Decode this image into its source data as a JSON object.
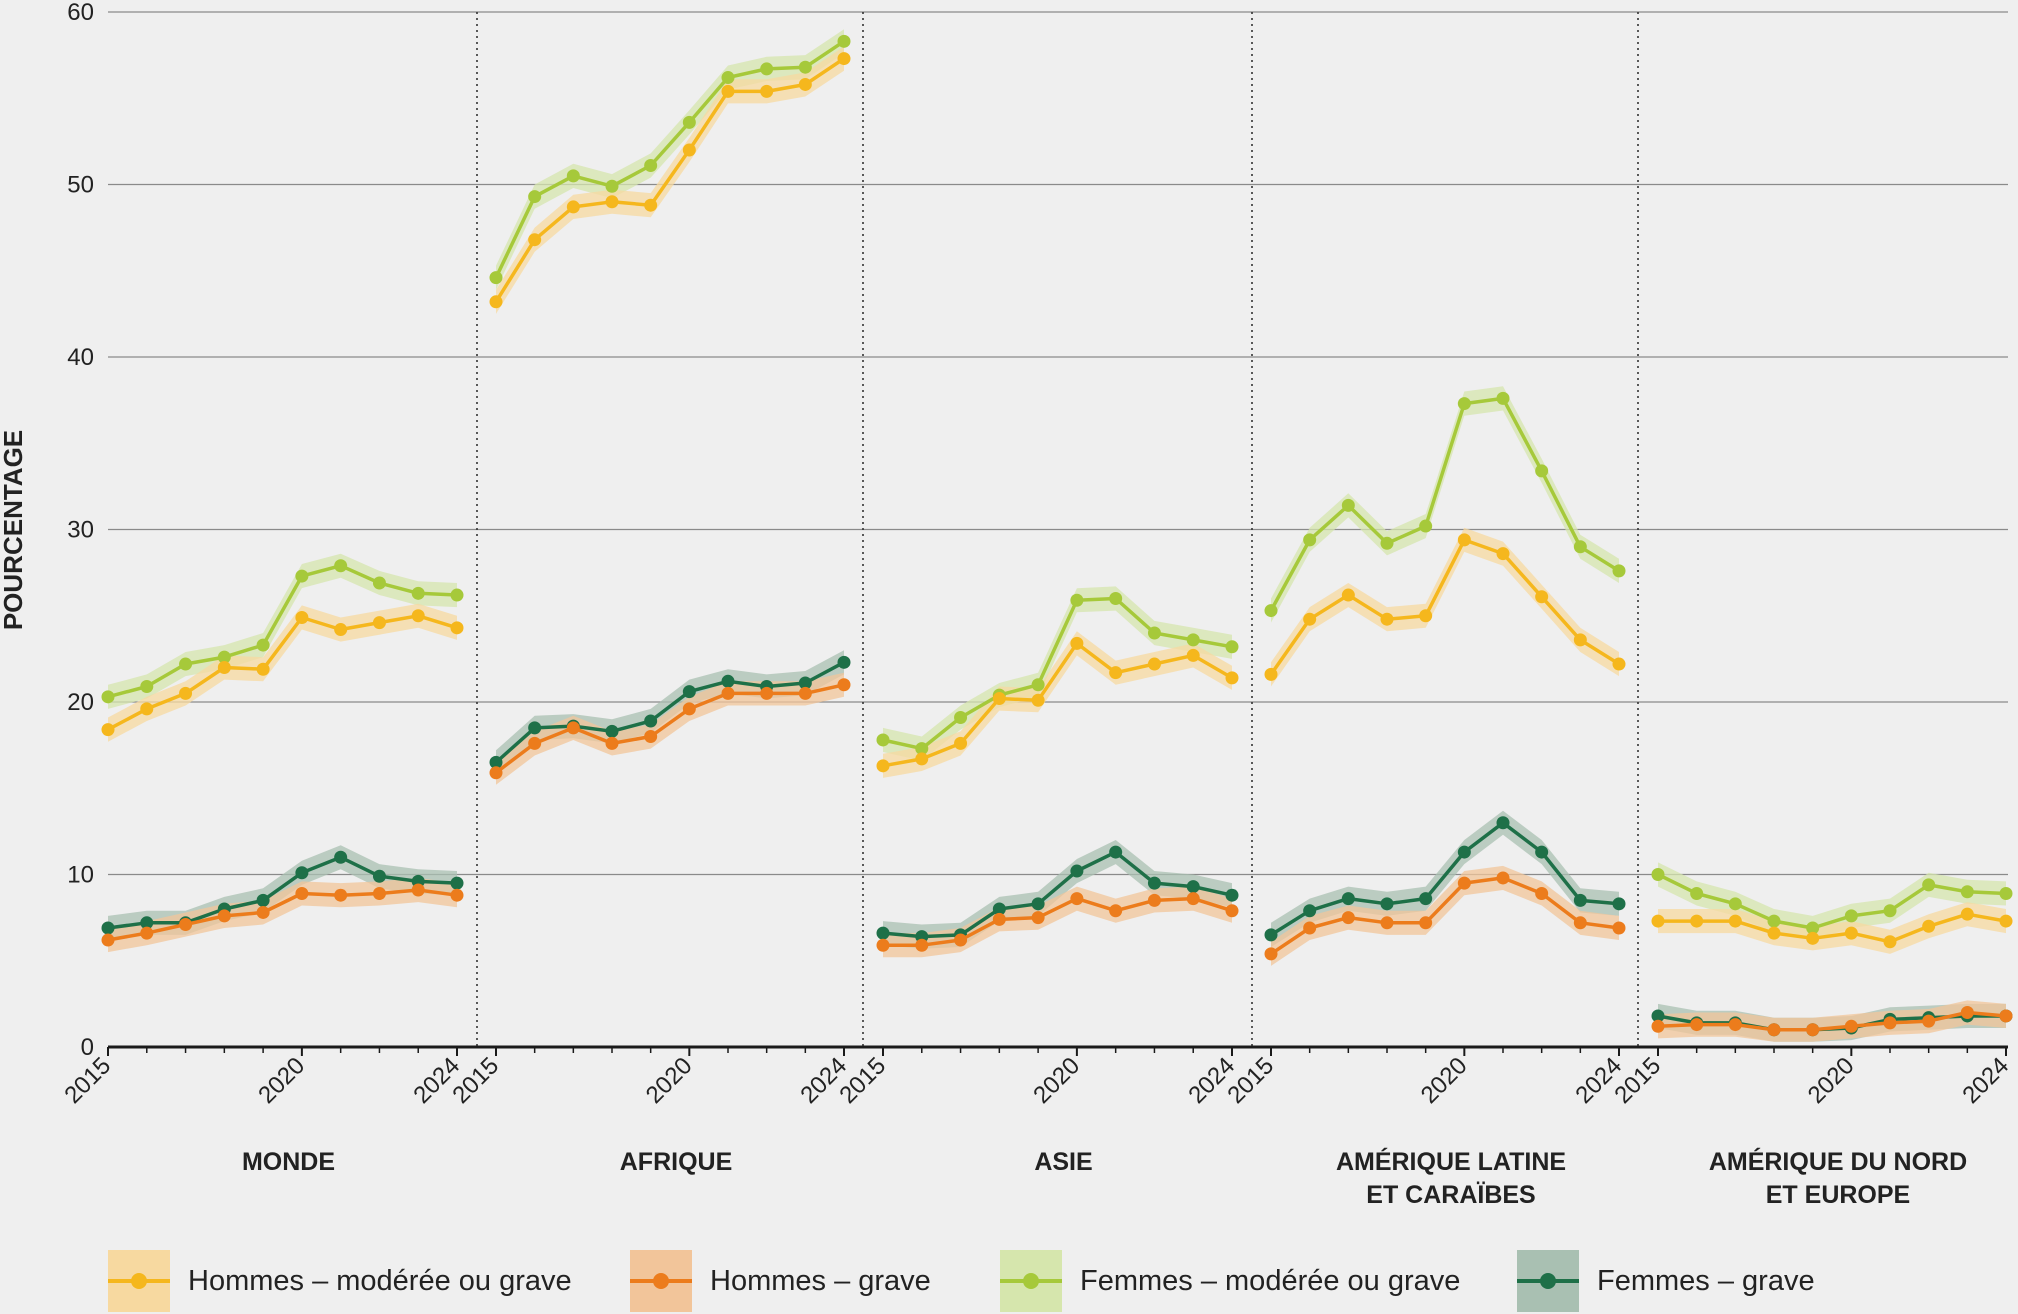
{
  "chart_data": {
    "type": "line",
    "ylabel": "POURCENTAGE",
    "ylim": [
      0,
      60
    ],
    "yticks": [
      "0",
      "10",
      "20",
      "30",
      "40",
      "50",
      "60"
    ],
    "x_tick_labels": [
      "2015",
      "2020",
      "2024"
    ],
    "years": [
      2015,
      2016,
      2017,
      2018,
      2019,
      2020,
      2021,
      2022,
      2023,
      2024
    ],
    "legend_position": "bottom",
    "series_styles": [
      {
        "key": "hommes_mod",
        "name": "Hommes – modérée ou grave",
        "color": "#f5b71d",
        "band": "#f7d9a0"
      },
      {
        "key": "hommes_grave",
        "name": "Hommes – grave",
        "color": "#ec7c1c",
        "band": "#f2c59a"
      },
      {
        "key": "femmes_mod",
        "name": "Femmes – modérée ou grave",
        "color": "#a6c93a",
        "band": "#d6e6ad"
      },
      {
        "key": "femmes_grave",
        "name": "Femmes – grave",
        "color": "#1e7048",
        "band": "#a9c0b2"
      }
    ],
    "panels": [
      {
        "title": [
          "MONDE"
        ],
        "series": {
          "hommes_mod": [
            18.4,
            19.6,
            20.5,
            22.0,
            21.9,
            24.9,
            24.2,
            24.6,
            25.0,
            24.3
          ],
          "hommes_grave": [
            6.2,
            6.6,
            7.1,
            7.6,
            7.8,
            8.9,
            8.8,
            8.9,
            9.1,
            8.8
          ],
          "femmes_mod": [
            20.3,
            20.9,
            22.2,
            22.6,
            23.3,
            27.3,
            27.9,
            26.9,
            26.3,
            26.2
          ],
          "femmes_grave": [
            6.9,
            7.2,
            7.2,
            8.0,
            8.5,
            10.1,
            11.0,
            9.9,
            9.6,
            9.5
          ]
        }
      },
      {
        "title": [
          "AFRIQUE"
        ],
        "series": {
          "hommes_mod": [
            43.2,
            46.8,
            48.7,
            49.0,
            48.8,
            52.0,
            55.4,
            55.4,
            55.8,
            57.3
          ],
          "hommes_grave": [
            15.9,
            17.6,
            18.5,
            17.6,
            18.0,
            19.6,
            20.5,
            20.5,
            20.5,
            21.0
          ],
          "femmes_mod": [
            44.6,
            49.3,
            50.5,
            49.9,
            51.1,
            53.6,
            56.2,
            56.7,
            56.8,
            58.3
          ],
          "femmes_grave": [
            16.5,
            18.5,
            18.6,
            18.3,
            18.9,
            20.6,
            21.2,
            20.9,
            21.1,
            22.3
          ]
        }
      },
      {
        "title": [
          "ASIE"
        ],
        "series": {
          "hommes_mod": [
            16.3,
            16.7,
            17.6,
            20.2,
            20.1,
            23.4,
            21.7,
            22.2,
            22.7,
            21.4
          ],
          "hommes_grave": [
            5.9,
            5.9,
            6.2,
            7.4,
            7.5,
            8.6,
            7.9,
            8.5,
            8.6,
            7.9
          ],
          "femmes_mod": [
            17.8,
            17.3,
            19.1,
            20.4,
            21.0,
            25.9,
            26.0,
            24.0,
            23.6,
            23.2
          ],
          "femmes_grave": [
            6.6,
            6.4,
            6.5,
            8.0,
            8.3,
            10.2,
            11.3,
            9.5,
            9.3,
            8.8
          ]
        }
      },
      {
        "title": [
          "AMÉRIQUE LATINE",
          "ET CARAÏBES"
        ],
        "series": {
          "hommes_mod": [
            21.6,
            24.8,
            26.2,
            24.8,
            25.0,
            29.4,
            28.6,
            26.1,
            23.6,
            22.2
          ],
          "hommes_grave": [
            5.4,
            6.9,
            7.5,
            7.2,
            7.2,
            9.5,
            9.8,
            8.9,
            7.2,
            6.9
          ],
          "femmes_mod": [
            25.3,
            29.4,
            31.4,
            29.2,
            30.2,
            37.3,
            37.6,
            33.4,
            29.0,
            27.6
          ],
          "femmes_grave": [
            6.5,
            7.9,
            8.6,
            8.3,
            8.6,
            11.3,
            13.0,
            11.3,
            8.5,
            8.3
          ]
        }
      },
      {
        "title": [
          "AMÉRIQUE DU NORD",
          "ET EUROPE"
        ],
        "series": {
          "hommes_mod": [
            7.3,
            7.3,
            7.3,
            6.6,
            6.3,
            6.6,
            6.1,
            7.0,
            7.7,
            7.3
          ],
          "hommes_grave": [
            1.2,
            1.3,
            1.3,
            1.0,
            1.0,
            1.2,
            1.4,
            1.5,
            2.0,
            1.8
          ],
          "femmes_mod": [
            10.0,
            8.9,
            8.3,
            7.3,
            6.9,
            7.6,
            7.9,
            9.4,
            9.0,
            8.9
          ],
          "femmes_grave": [
            1.8,
            1.4,
            1.4,
            1.0,
            1.0,
            1.1,
            1.6,
            1.7,
            1.8,
            1.8
          ]
        }
      }
    ]
  }
}
